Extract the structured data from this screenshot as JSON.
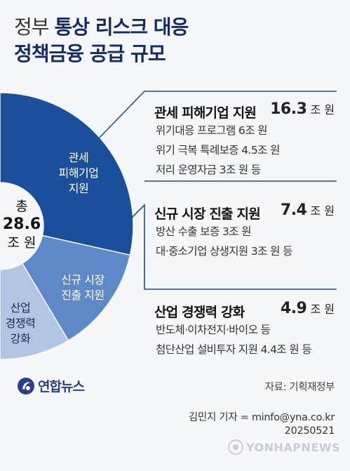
{
  "title": {
    "part1": "정부",
    "part2": "통상 리스크 대응",
    "line2": "정책금융 공급 규모"
  },
  "total": {
    "label": "총",
    "value": "28.6",
    "unit": "조 원"
  },
  "chart_data": {
    "type": "pie",
    "unit": "조 원",
    "total": 28.6,
    "slices": [
      {
        "label_lines": [
          "관세",
          "피해기업",
          "지원"
        ],
        "value": 16.3,
        "color": "#1b4e9b",
        "text_color": "#ffffff"
      },
      {
        "label_lines": [
          "신규 시장",
          "진출 지원"
        ],
        "value": 7.4,
        "color": "#5e88c6",
        "text_color": "#ffffff"
      },
      {
        "label_lines": [
          "산업",
          "경쟁력",
          "강화"
        ],
        "value": 4.9,
        "color": "#b2c6e3",
        "text_color": "#1a2d5a"
      }
    ]
  },
  "sections": [
    {
      "title": "관세 피해기업 지원",
      "amount": "16.3",
      "unit": "조 원",
      "details": [
        "위기대응 프로그램 6조 원",
        "위기 극복 특례보증 4.5조 원",
        "저리 운영자금 3조 원 등"
      ]
    },
    {
      "title": "신규 시장 진출 지원",
      "amount": "7.4",
      "unit": "조 원",
      "details": [
        "방산 수출 보증 3조 원",
        "대·중소기업 상생지원 3조 원 등"
      ]
    },
    {
      "title": "산업 경쟁력 강화",
      "amount": "4.9",
      "unit": "조 원",
      "details": [
        "반도체·이차전지·바이오 등",
        "첨단산업 설비투자 지원 4.4조 원 등"
      ]
    }
  ],
  "logo": {
    "text": "연합뉴스",
    "icon": "yonhap-logo-icon"
  },
  "source": "자료: 기획재정부",
  "reporter": {
    "line1": "김민지 기자 = minfo@yna.co.kr",
    "line2": "20250521"
  },
  "watermark": {
    "text": "YONHAPNEWS",
    "icon": "yonhap-watermark-icon"
  },
  "colors": {
    "title": "#152b63",
    "connector": "#1b4e9b",
    "background": "#f5f7fb"
  }
}
